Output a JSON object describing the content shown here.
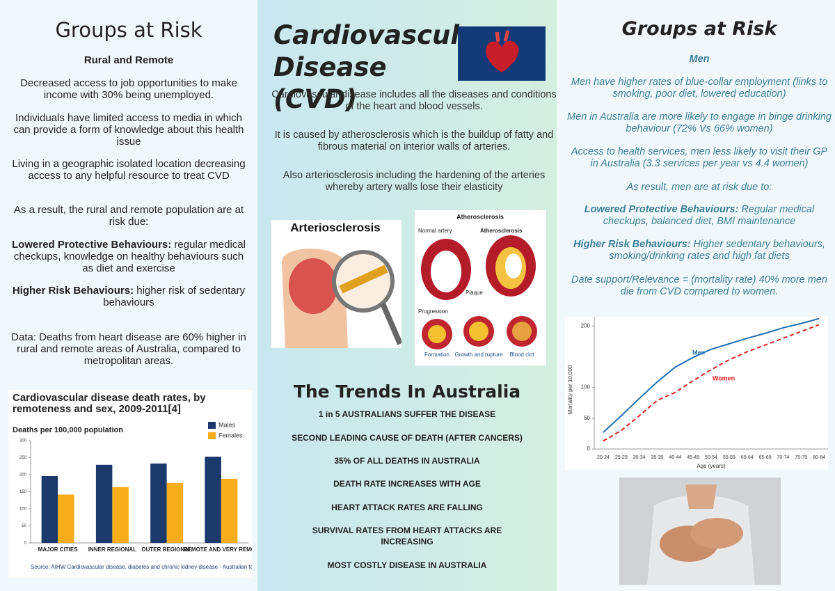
{
  "left": {
    "title": "Groups at Risk",
    "subtitle": "Rural and Remote",
    "paragraphs": [
      "Decreased access to job opportunities to make income with 30% being unemployed.",
      "Individuals have limited access to media in which can provide a form of knowledge about this health issue",
      "Living in a geographic isolated location decreasing access to any helpful resource to treat CVD",
      "As a result, the rural and remote population are at risk due:"
    ],
    "risks": [
      {
        "label": "Lowered Protective Behaviours:",
        "text": " regular medical checkups, knowledge on healthy behaviours such as diet and exercise"
      },
      {
        "label": "Higher Risk Behaviours:",
        "text": " higher risk of sedentary behaviours"
      }
    ],
    "data_note": "Data: Deaths from heart disease are 60% higher in rural and remote areas of Australia, compared to metropolitan areas."
  },
  "center": {
    "title": "Cardiovascular Disease (CVD)",
    "paragraphs": [
      "Cardiovascular disease includes all the diseases and conditions of the heart and blood vessels.",
      "It is caused by atherosclerosis which is the buildup of fatty and fibrous material on interior walls of arteries.",
      "Also arteriosclerosis including the hardening of the arteries whereby artery walls lose their elasticity"
    ],
    "image_arterio": {
      "title": "Arteriosclerosis"
    },
    "image_athero": {
      "title": "Atherosclerosis",
      "normal": "Normal artery",
      "diseased": "Atherosclerosis",
      "plaque": "Plaque",
      "progression": "Progression",
      "stages": [
        "Formation",
        "Growth and rupture",
        "Blood clot"
      ]
    },
    "trends_title": "The Trends In Australia",
    "trends": [
      "1 in 5 AUSTRALIANS SUFFER THE DISEASE",
      "SECOND LEADING CAUSE OF DEATH (AFTER CANCERS)",
      "35% OF ALL DEATHS IN AUSTRALIA",
      "DEATH RATE INCREASES WITH AGE",
      "HEART ATTACK RATES ARE FALLING",
      "SURVIVAL RATES FROM HEART ATTACKS ARE INCREASING",
      "MOST COSTLY DISEASE IN AUSTRALIA"
    ]
  },
  "right": {
    "title": "Groups at Risk",
    "subtitle": "Men",
    "paragraphs": [
      "Men have higher rates of blue-collar employment (links to smoking, poor diet, lowered education)",
      "Men in Australia are more likely to engage in binge drinking behaviour (72% Vs 66% women)",
      "Access to health services, men less likely to visit their GP in Australia (3.3 services per year vs 4.4 women)",
      "As result, men are at risk due to:"
    ],
    "risks": [
      {
        "label": "Lowered Protective Behaviours:",
        "text": " Regular medical checkups, balanced diet, BMI maintenance"
      },
      {
        "label": "Higher Risk Behaviours:",
        "text": " Higher sedentary behaviours, smoking/drinking rates and high fat diets"
      }
    ],
    "data_note": "Date support/Relevance = (mortality rate) 40% more men die from CVD compared to women."
  },
  "chart_data": [
    {
      "type": "bar",
      "title": "Cardiovascular disease death rates, by remoteness and sex, 2009-2011[4]",
      "y_label": "Deaths per 100,000 population",
      "categories": [
        "MAJOR CITIES",
        "INNER REGIONAL",
        "OUTER REGIONAL",
        "REMOTE AND VERY REMOT"
      ],
      "series": [
        {
          "name": "Males",
          "color": "#1b3a6b",
          "values": [
            196,
            229,
            233,
            253
          ]
        },
        {
          "name": "Females",
          "color": "#f9ad1b",
          "values": [
            142,
            164,
            176,
            188
          ]
        }
      ],
      "ylim": [
        0,
        300
      ],
      "yticks": [
        0,
        50,
        100,
        150,
        200,
        250,
        300
      ],
      "source": "Source: AIHW Cardiovascular disease, diabetes and chronic kidney disease - Australian facts: Mortal"
    },
    {
      "type": "line",
      "y_label": "Mortality per 10,000",
      "x_label": "Age (years)",
      "categories": [
        "20-24",
        "25-29",
        "30-34",
        "35-39",
        "40-44",
        "45-49",
        "50-54",
        "55-59",
        "60-64",
        "65-69",
        "70-74",
        "75-79",
        "80-84"
      ],
      "series": [
        {
          "name": "Men",
          "color": "#1f6fb5",
          "values": [
            27,
            54,
            82,
            109,
            133,
            149,
            162,
            171,
            180,
            188,
            197,
            204,
            212
          ]
        },
        {
          "name": "Women",
          "color": "#e02020",
          "dashed": true,
          "values": [
            13,
            30,
            54,
            79,
            92,
            111,
            129,
            145,
            158,
            169,
            180,
            191,
            202
          ]
        }
      ],
      "ylim": [
        0,
        215
      ],
      "yticks": [
        0,
        50,
        100,
        200
      ]
    }
  ]
}
